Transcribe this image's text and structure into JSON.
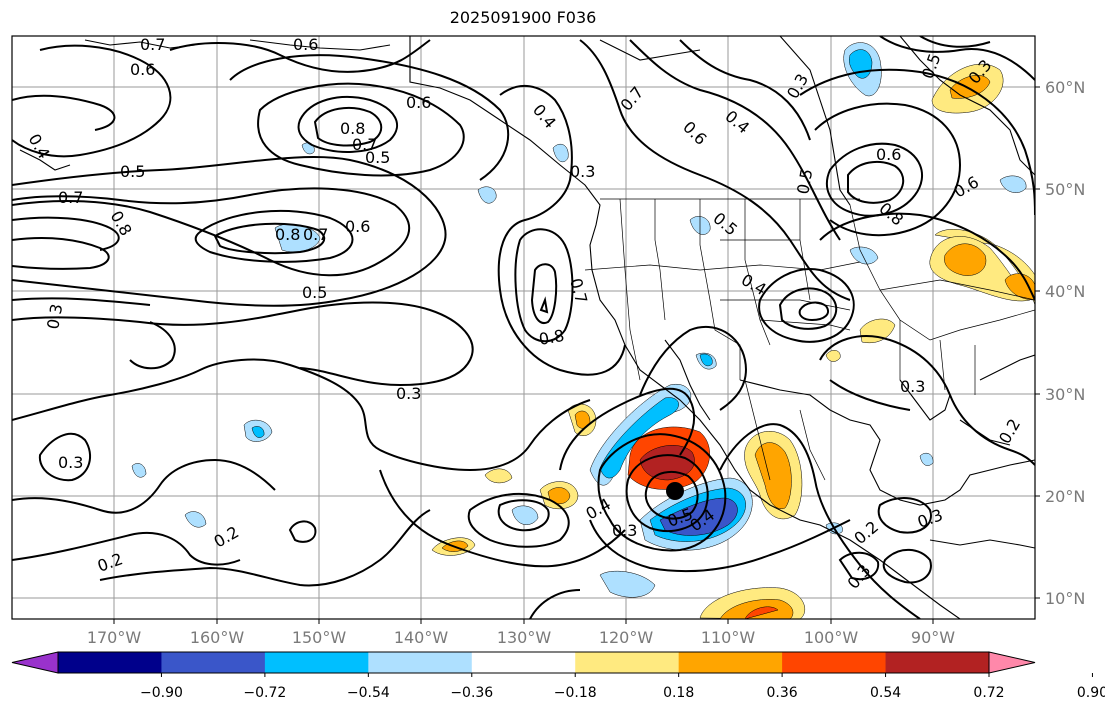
{
  "title": "2025091900 F036",
  "map": {
    "lon_labels": [
      "170°W",
      "160°W",
      "150°W",
      "140°W",
      "130°W",
      "120°W",
      "110°W",
      "100°W",
      "90°W"
    ],
    "lat_labels": [
      "60°N",
      "50°N",
      "40°N",
      "30°N",
      "20°N",
      "10°N"
    ],
    "contour_labels": [
      "0.7",
      "0.6",
      "0.6",
      "0.4",
      "0.5",
      "0.8",
      "0.7",
      "0.5",
      "0.7",
      "0.8",
      "0.8",
      "0.7",
      "0.6",
      "0.5",
      "0.3",
      "0.3",
      "0.2",
      "0.2",
      "0.3",
      "0.4",
      "0.3",
      "0.7",
      "0.6",
      "0.4",
      "0.3",
      "0.5",
      "0.4",
      "0.6",
      "0.7",
      "0.8",
      "0.5",
      "0.6",
      "0.6",
      "0.8",
      "0.3",
      "0.4",
      "0.5",
      "0.4",
      "0.3",
      "0.5",
      "0.3",
      "0.3",
      "0.2",
      "0.3",
      "0.2"
    ],
    "storm_center_icon": "storm-center-dot"
  },
  "colorbar": {
    "labels": [
      "−0.90",
      "−0.72",
      "−0.54",
      "−0.36",
      "−0.18",
      "0.18",
      "0.36",
      "0.54",
      "0.72",
      "0.90"
    ],
    "colors": [
      "#9932cc",
      "#00008b",
      "#3a56c9",
      "#00bfff",
      "#aee0ff",
      "#ffffff",
      "#ffea80",
      "#ffa500",
      "#ff4500",
      "#b22222",
      "#ff88aa"
    ]
  }
}
